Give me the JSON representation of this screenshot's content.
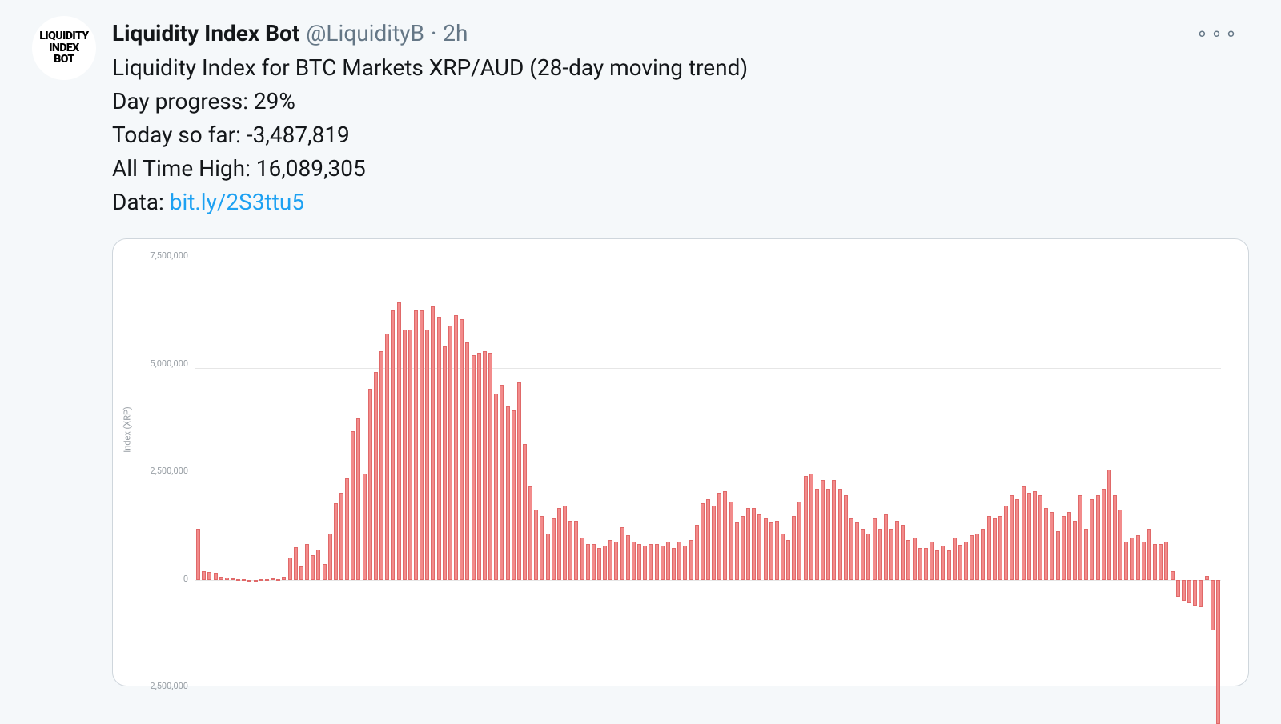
{
  "tweet": {
    "avatar": {
      "line1": "LIQUIDITY",
      "line2": "INDEX",
      "line3": "BOT"
    },
    "display_name": "Liquidity Index Bot",
    "handle": "@LiquidityB",
    "separator": "·",
    "timestamp": "2h",
    "more_glyph": "∘∘∘",
    "body": {
      "line1": "Liquidity Index for BTC Markets XRP/AUD (28-day moving trend)",
      "line2": "Day progress: 29%",
      "line3": "Today so far: -3,487,819",
      "line4": "All Time High: 16,089,305",
      "line5_prefix": "Data: ",
      "line5_link": "bit.ly/2S3ttu5"
    }
  },
  "chart": {
    "type": "bar",
    "y_label": "Index (XRP)",
    "y_ticks": [
      {
        "value": 7500000,
        "label": "7,500,000"
      },
      {
        "value": 5000000,
        "label": "5,000,000"
      },
      {
        "value": 2500000,
        "label": "2,500,000"
      },
      {
        "value": 0,
        "label": "0"
      },
      {
        "value": -2500000,
        "label": "-2,500,000"
      }
    ],
    "ylim": [
      -2500000,
      7500000
    ],
    "baseline_value": 0,
    "bar_fill": "#f28b8b",
    "bar_stroke": "#e06969",
    "grid_color": "#e6e6e6",
    "axis_color": "#d0d0d0",
    "tick_font_color": "#9aa0a6",
    "tick_fontsize": 11,
    "background_color": "#ffffff",
    "card_border_color": "#cfd6dc",
    "card_border_radius": 18,
    "values": [
      1200000,
      200000,
      180000,
      160000,
      70000,
      50000,
      30000,
      20000,
      10000,
      5000,
      5000,
      10000,
      20000,
      40000,
      20000,
      80000,
      520000,
      780000,
      320000,
      840000,
      580000,
      720000,
      380000,
      1100000,
      1800000,
      2050000,
      2400000,
      3500000,
      3800000,
      2500000,
      4500000,
      4900000,
      5400000,
      5800000,
      6350000,
      6550000,
      5900000,
      5900000,
      6350000,
      6350000,
      5900000,
      6450000,
      6200000,
      5500000,
      6000000,
      6250000,
      6150000,
      5600000,
      5300000,
      5350000,
      5400000,
      5350000,
      4400000,
      4600000,
      4100000,
      4000000,
      4650000,
      3200000,
      2200000,
      1650000,
      1500000,
      1100000,
      1450000,
      1700000,
      1750000,
      1400000,
      1400000,
      1000000,
      850000,
      850000,
      750000,
      800000,
      950000,
      900000,
      1250000,
      1050000,
      900000,
      850000,
      800000,
      850000,
      850000,
      800000,
      900000,
      750000,
      900000,
      800000,
      950000,
      1300000,
      1800000,
      1900000,
      1750000,
      2050000,
      2100000,
      1850000,
      1350000,
      1500000,
      1700000,
      1700000,
      1550000,
      1450000,
      1350000,
      1400000,
      1100000,
      950000,
      1500000,
      1850000,
      2450000,
      2500000,
      2150000,
      2350000,
      2150000,
      2350000,
      2150000,
      2000000,
      1450000,
      1350000,
      1200000,
      1100000,
      1450000,
      1200000,
      1550000,
      1200000,
      1400000,
      1300000,
      950000,
      1000000,
      750000,
      750000,
      900000,
      700000,
      800000,
      700000,
      1000000,
      820000,
      900000,
      1050000,
      1100000,
      1200000,
      1500000,
      1450000,
      1500000,
      1750000,
      2000000,
      1900000,
      2200000,
      2050000,
      2100000,
      2000000,
      1700000,
      1600000,
      1150000,
      1500000,
      1600000,
      1400000,
      2000000,
      1200000,
      1900000,
      2000000,
      2150000,
      2600000,
      2000000,
      1650000,
      900000,
      1000000,
      1050000,
      900000,
      1200000,
      850000,
      850000,
      900000,
      200000,
      -400000,
      -500000,
      -550000,
      -600000,
      -650000,
      100000,
      -1200000,
      -3400000
    ]
  }
}
